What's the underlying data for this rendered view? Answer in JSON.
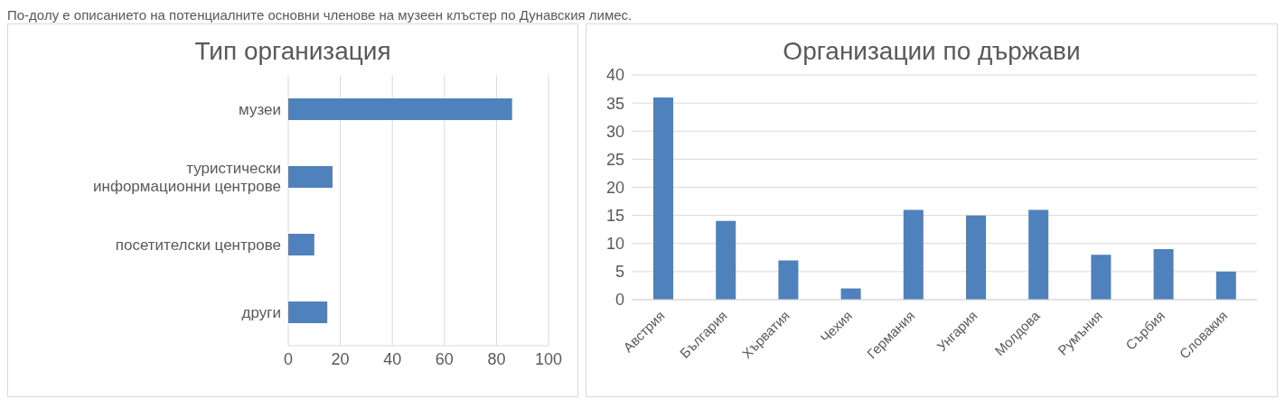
{
  "chart_data": [
    {
      "type": "bar",
      "title": "Тип организация",
      "orientation": "horizontal",
      "categories": [
        "музеи",
        "туристически информационни центрове",
        "посетителски центрове",
        "други"
      ],
      "values": [
        86,
        17,
        10,
        15
      ],
      "color": "#4f81bd",
      "xlim": [
        0,
        100
      ],
      "xticks": [
        0,
        20,
        40,
        60,
        80,
        100
      ],
      "grid": "x",
      "annotations": [
        "По-долу е описанието на потенциалните основни членове на музеен клъстер по Дунавския лимес."
      ]
    },
    {
      "type": "bar",
      "title": "Организации по държави",
      "categories": [
        "Австрия",
        "България",
        "Хърватия",
        "Чехия",
        "Германия",
        "Унгария",
        "Молдова",
        "Румъния",
        "Сърбия",
        "Словакия"
      ],
      "values": [
        36,
        14,
        7,
        2,
        16,
        15,
        16,
        8,
        9,
        5
      ],
      "color": "#4f81bd",
      "ylim": [
        0,
        40
      ],
      "yticks": [
        0,
        5,
        10,
        15,
        20,
        25,
        30,
        35,
        40
      ],
      "grid": "y"
    }
  ]
}
